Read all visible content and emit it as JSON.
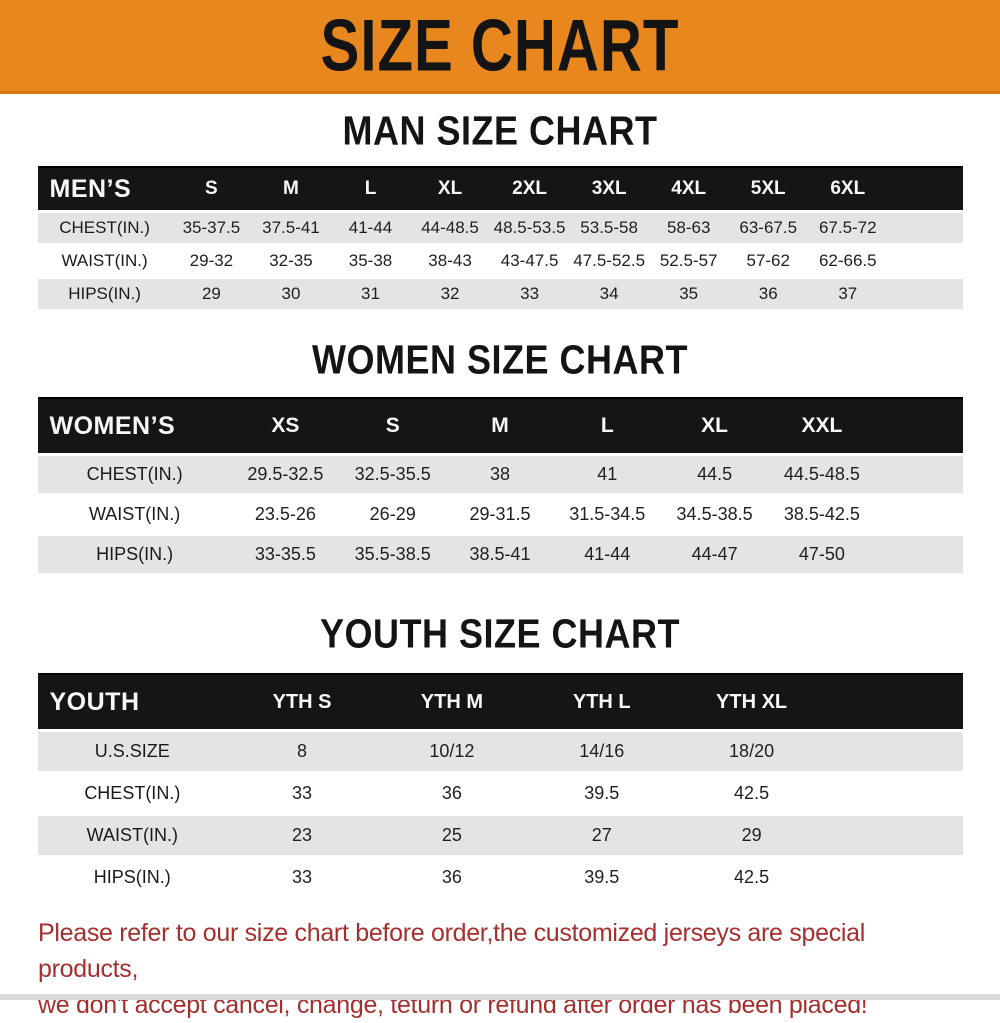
{
  "banner": {
    "title": "SIZE CHART"
  },
  "sections": [
    {
      "title": "MAN SIZE CHART",
      "header_label": "MEN’S",
      "columns": [
        "S",
        "M",
        "L",
        "XL",
        "2XL",
        "3XL",
        "4XL",
        "5XL",
        "6XL"
      ],
      "rows": [
        {
          "label": "CHEST(IN.)",
          "values": [
            "35-37.5",
            "37.5-41",
            "41-44",
            "44-48.5",
            "48.5-53.5",
            "53.5-58",
            "58-63",
            "63-67.5",
            "67.5-72"
          ]
        },
        {
          "label": "WAIST(IN.)",
          "values": [
            "29-32",
            "32-35",
            "35-38",
            "38-43",
            "43-47.5",
            "47.5-52.5",
            "52.5-57",
            "57-62",
            "62-66.5"
          ]
        },
        {
          "label": "HIPS(IN.)",
          "values": [
            "29",
            "30",
            "31",
            "32",
            "33",
            "34",
            "35",
            "36",
            "37"
          ]
        }
      ]
    },
    {
      "title": "WOMEN SIZE CHART",
      "header_label": "WOMEN’S",
      "columns": [
        "XS",
        "S",
        "M",
        "L",
        "XL",
        "XXL"
      ],
      "rows": [
        {
          "label": "CHEST(IN.)",
          "values": [
            "29.5-32.5",
            "32.5-35.5",
            "38",
            "41",
            "44.5",
            "44.5-48.5"
          ]
        },
        {
          "label": "WAIST(IN.)",
          "values": [
            "23.5-26",
            "26-29",
            "29-31.5",
            "31.5-34.5",
            "34.5-38.5",
            "38.5-42.5"
          ]
        },
        {
          "label": "HIPS(IN.)",
          "values": [
            "33-35.5",
            "35.5-38.5",
            "38.5-41",
            "41-44",
            "44-47",
            "47-50"
          ]
        }
      ]
    },
    {
      "title": "YOUTH SIZE CHART",
      "header_label": "YOUTH",
      "columns": [
        "YTH S",
        "YTH M",
        "YTH L",
        "YTH XL"
      ],
      "rows": [
        {
          "label": "U.S.SIZE",
          "values": [
            "8",
            "10/12",
            "14/16",
            "18/20"
          ]
        },
        {
          "label": "CHEST(IN.)",
          "values": [
            "33",
            "36",
            "39.5",
            "42.5"
          ]
        },
        {
          "label": "WAIST(IN.)",
          "values": [
            "23",
            "25",
            "27",
            "29"
          ]
        },
        {
          "label": "HIPS(IN.)",
          "values": [
            "33",
            "36",
            "39.5",
            "42.5"
          ]
        }
      ]
    }
  ],
  "footer": {
    "line1": "Please refer to our size chart before order,the customized jerseys are special products,",
    "line2": "we don't accept cancel, change, teturn or refund after order has been placed!"
  },
  "colors": {
    "banner_orange": "#E8871E",
    "header_black": "#151515",
    "row_gray": "#E4E4E4",
    "footer_red": "#A52F2F"
  }
}
